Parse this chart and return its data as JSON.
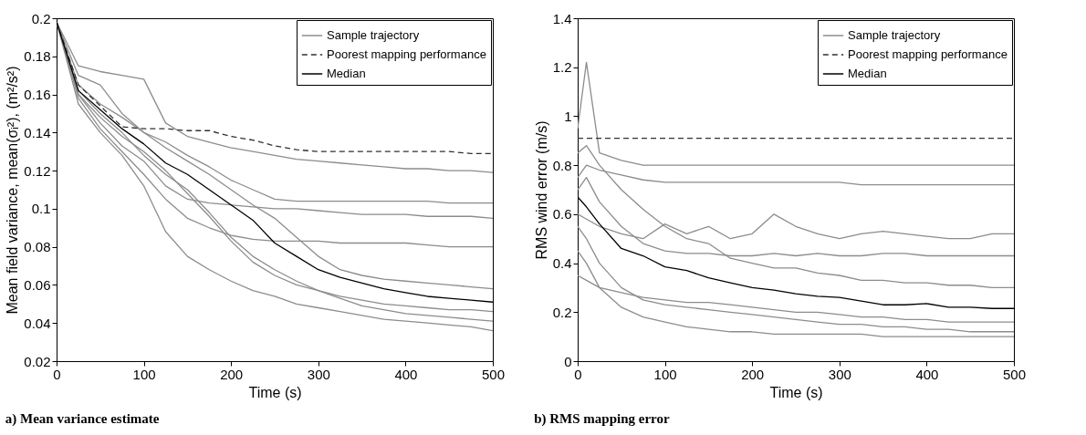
{
  "chart_data": [
    {
      "type": "line",
      "title": "a) Mean variance estimate",
      "xlabel": "Time (s)",
      "ylabel": "Mean field variance,  mean(σᵢ²), (m²/s²)",
      "xlim": [
        0,
        500
      ],
      "xticks": [
        0,
        100,
        200,
        300,
        400,
        500
      ],
      "ylim": [
        0.02,
        0.2
      ],
      "yticks": [
        0.02,
        0.04,
        0.06,
        0.08,
        0.1,
        0.12,
        0.14,
        0.16,
        0.18,
        0.2
      ],
      "grid": false,
      "legend": "top right",
      "x": [
        0,
        25,
        50,
        75,
        100,
        125,
        150,
        175,
        200,
        225,
        250,
        275,
        300,
        325,
        350,
        375,
        400,
        425,
        450,
        475,
        500
      ],
      "series": [
        {
          "name": "Sample trajectory",
          "color": "#8c8c8c",
          "values": [
            0.198,
            0.175,
            0.172,
            0.17,
            0.168,
            0.145,
            0.138,
            0.135,
            0.132,
            0.13,
            0.128,
            0.126,
            0.125,
            0.124,
            0.123,
            0.122,
            0.121,
            0.121,
            0.12,
            0.12,
            0.119
          ]
        },
        {
          "color": "#8c8c8c",
          "values": [
            0.198,
            0.16,
            0.145,
            0.133,
            0.125,
            0.112,
            0.105,
            0.103,
            0.102,
            0.101,
            0.1,
            0.1,
            0.099,
            0.098,
            0.097,
            0.097,
            0.097,
            0.096,
            0.096,
            0.096,
            0.095
          ]
        },
        {
          "color": "#8c8c8c",
          "values": [
            0.198,
            0.158,
            0.142,
            0.13,
            0.118,
            0.105,
            0.095,
            0.09,
            0.086,
            0.084,
            0.083,
            0.083,
            0.083,
            0.082,
            0.082,
            0.082,
            0.082,
            0.081,
            0.08,
            0.08,
            0.08
          ]
        },
        {
          "color": "#8c8c8c",
          "values": [
            0.198,
            0.155,
            0.14,
            0.128,
            0.112,
            0.088,
            0.075,
            0.068,
            0.062,
            0.057,
            0.054,
            0.05,
            0.048,
            0.046,
            0.044,
            0.042,
            0.041,
            0.04,
            0.039,
            0.038,
            0.036
          ]
        },
        {
          "color": "#8c8c8c",
          "values": [
            0.198,
            0.162,
            0.15,
            0.14,
            0.128,
            0.118,
            0.11,
            0.098,
            0.085,
            0.075,
            0.068,
            0.062,
            0.057,
            0.053,
            0.049,
            0.047,
            0.045,
            0.044,
            0.043,
            0.042,
            0.041
          ]
        },
        {
          "color": "#8c8c8c",
          "values": [
            0.198,
            0.17,
            0.165,
            0.15,
            0.14,
            0.132,
            0.125,
            0.118,
            0.11,
            0.102,
            0.095,
            0.085,
            0.075,
            0.068,
            0.065,
            0.063,
            0.062,
            0.061,
            0.06,
            0.059,
            0.058
          ]
        },
        {
          "color": "#8c8c8c",
          "values": [
            0.198,
            0.165,
            0.155,
            0.148,
            0.14,
            0.135,
            0.128,
            0.122,
            0.115,
            0.11,
            0.105,
            0.104,
            0.104,
            0.104,
            0.104,
            0.104,
            0.104,
            0.104,
            0.103,
            0.103,
            0.103
          ]
        },
        {
          "color": "#8c8c8c",
          "values": [
            0.198,
            0.16,
            0.148,
            0.138,
            0.13,
            0.12,
            0.108,
            0.096,
            0.083,
            0.072,
            0.065,
            0.06,
            0.057,
            0.054,
            0.052,
            0.05,
            0.049,
            0.048,
            0.047,
            0.047,
            0.046
          ]
        },
        {
          "name": "Poorest mapping performance",
          "color": "#303030",
          "line_style": "dashed",
          "values": [
            0.198,
            0.165,
            0.154,
            0.143,
            0.142,
            0.142,
            0.141,
            0.141,
            0.138,
            0.136,
            0.133,
            0.131,
            0.13,
            0.13,
            0.13,
            0.13,
            0.13,
            0.13,
            0.13,
            0.129,
            0.129
          ]
        },
        {
          "name": "Median",
          "color": "#000000",
          "values": [
            0.198,
            0.162,
            0.152,
            0.142,
            0.134,
            0.124,
            0.118,
            0.11,
            0.102,
            0.094,
            0.082,
            0.075,
            0.068,
            0.064,
            0.061,
            0.058,
            0.056,
            0.054,
            0.053,
            0.052,
            0.051
          ]
        }
      ]
    },
    {
      "type": "line",
      "title": "b) RMS mapping error",
      "xlabel": "Time (s)",
      "ylabel": "RMS wind error  (m/s)",
      "xlim": [
        0,
        500
      ],
      "xticks": [
        0,
        100,
        200,
        300,
        400,
        500
      ],
      "ylim": [
        0,
        1.4
      ],
      "yticks": [
        0,
        0.2,
        0.4,
        0.6,
        0.8,
        1,
        1.2,
        1.4
      ],
      "grid": false,
      "legend": "top right",
      "x": [
        0,
        10,
        25,
        50,
        75,
        100,
        125,
        150,
        175,
        200,
        225,
        250,
        275,
        300,
        325,
        350,
        375,
        400,
        425,
        450,
        475,
        500
      ],
      "series": [
        {
          "name": "Sample trajectory",
          "color": "#8c8c8c",
          "values": [
            0.95,
            1.22,
            0.85,
            0.82,
            0.8,
            0.8,
            0.8,
            0.8,
            0.8,
            0.8,
            0.8,
            0.8,
            0.8,
            0.8,
            0.8,
            0.8,
            0.8,
            0.8,
            0.8,
            0.8,
            0.8,
            0.8
          ]
        },
        {
          "color": "#8c8c8c",
          "values": [
            0.75,
            0.8,
            0.78,
            0.76,
            0.74,
            0.73,
            0.73,
            0.73,
            0.73,
            0.73,
            0.73,
            0.73,
            0.73,
            0.73,
            0.72,
            0.72,
            0.72,
            0.72,
            0.72,
            0.72,
            0.72,
            0.72
          ]
        },
        {
          "color": "#8c8c8c",
          "values": [
            0.6,
            0.58,
            0.55,
            0.52,
            0.5,
            0.56,
            0.52,
            0.55,
            0.5,
            0.52,
            0.6,
            0.55,
            0.52,
            0.5,
            0.52,
            0.53,
            0.52,
            0.51,
            0.5,
            0.5,
            0.52,
            0.52
          ]
        },
        {
          "color": "#8c8c8c",
          "values": [
            0.55,
            0.5,
            0.4,
            0.3,
            0.25,
            0.23,
            0.22,
            0.21,
            0.2,
            0.19,
            0.18,
            0.17,
            0.16,
            0.15,
            0.15,
            0.14,
            0.14,
            0.13,
            0.13,
            0.12,
            0.12,
            0.12
          ]
        },
        {
          "color": "#8c8c8c",
          "values": [
            0.45,
            0.4,
            0.3,
            0.22,
            0.18,
            0.16,
            0.14,
            0.13,
            0.12,
            0.12,
            0.11,
            0.11,
            0.11,
            0.11,
            0.11,
            0.1,
            0.1,
            0.1,
            0.1,
            0.1,
            0.1,
            0.1
          ]
        },
        {
          "color": "#8c8c8c",
          "values": [
            0.7,
            0.75,
            0.65,
            0.55,
            0.48,
            0.45,
            0.44,
            0.44,
            0.43,
            0.43,
            0.44,
            0.43,
            0.44,
            0.43,
            0.43,
            0.44,
            0.44,
            0.43,
            0.43,
            0.43,
            0.43,
            0.43
          ]
        },
        {
          "color": "#8c8c8c",
          "values": [
            0.85,
            0.88,
            0.8,
            0.7,
            0.62,
            0.55,
            0.5,
            0.48,
            0.42,
            0.4,
            0.38,
            0.38,
            0.36,
            0.35,
            0.33,
            0.33,
            0.32,
            0.32,
            0.31,
            0.31,
            0.3,
            0.3
          ]
        },
        {
          "color": "#8c8c8c",
          "values": [
            0.35,
            0.33,
            0.3,
            0.28,
            0.26,
            0.25,
            0.24,
            0.24,
            0.23,
            0.22,
            0.21,
            0.2,
            0.2,
            0.19,
            0.18,
            0.18,
            0.17,
            0.17,
            0.16,
            0.16,
            0.16,
            0.16
          ]
        },
        {
          "name": "Poorest mapping performance",
          "color": "#303030",
          "line_style": "dashed",
          "x": [
            0,
            500
          ],
          "values": [
            0.91,
            0.91
          ]
        },
        {
          "name": "Median",
          "color": "#000000",
          "values": [
            0.67,
            0.63,
            0.56,
            0.46,
            0.43,
            0.385,
            0.37,
            0.34,
            0.32,
            0.3,
            0.29,
            0.275,
            0.265,
            0.26,
            0.245,
            0.23,
            0.23,
            0.235,
            0.22,
            0.22,
            0.215,
            0.215
          ]
        }
      ]
    }
  ]
}
